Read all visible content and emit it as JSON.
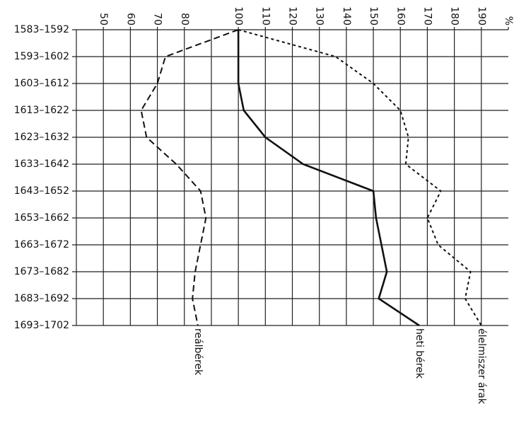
{
  "chart_data": {
    "type": "line",
    "categories": [
      "1583–1592",
      "1593–1602",
      "1603–1612",
      "1613–1622",
      "1623–1632",
      "1633–1642",
      "1643–1652",
      "1653–1662",
      "1663–1672",
      "1673–1682",
      "1683–1692",
      "1693–1702"
    ],
    "xlim": [
      40,
      200
    ],
    "xticks": [
      50,
      60,
      70,
      80,
      100,
      110,
      120,
      130,
      140,
      150,
      160,
      170,
      180,
      190,
      {
        "value": 200,
        "label": "%"
      }
    ],
    "xgrid": [
      40,
      50,
      60,
      70,
      80,
      90,
      100,
      110,
      120,
      130,
      140,
      150,
      160,
      170,
      180,
      190
    ],
    "series": [
      {
        "name": "reálbérek",
        "color": "#111",
        "style": "dashed",
        "values": [
          100,
          73,
          70,
          64,
          66,
          77,
          86,
          88,
          86,
          84,
          83,
          85
        ]
      },
      {
        "name": "heti bérek",
        "color": "#111",
        "style": "solid",
        "values": [
          100,
          100,
          100,
          102,
          110,
          124,
          150,
          151,
          153,
          155,
          152,
          167
        ]
      },
      {
        "name": "élelmiszer árak",
        "color": "#111",
        "style": "dotted",
        "values": [
          100,
          136,
          150,
          160,
          163,
          162,
          175,
          170,
          174,
          186,
          184,
          190
        ]
      }
    ]
  }
}
